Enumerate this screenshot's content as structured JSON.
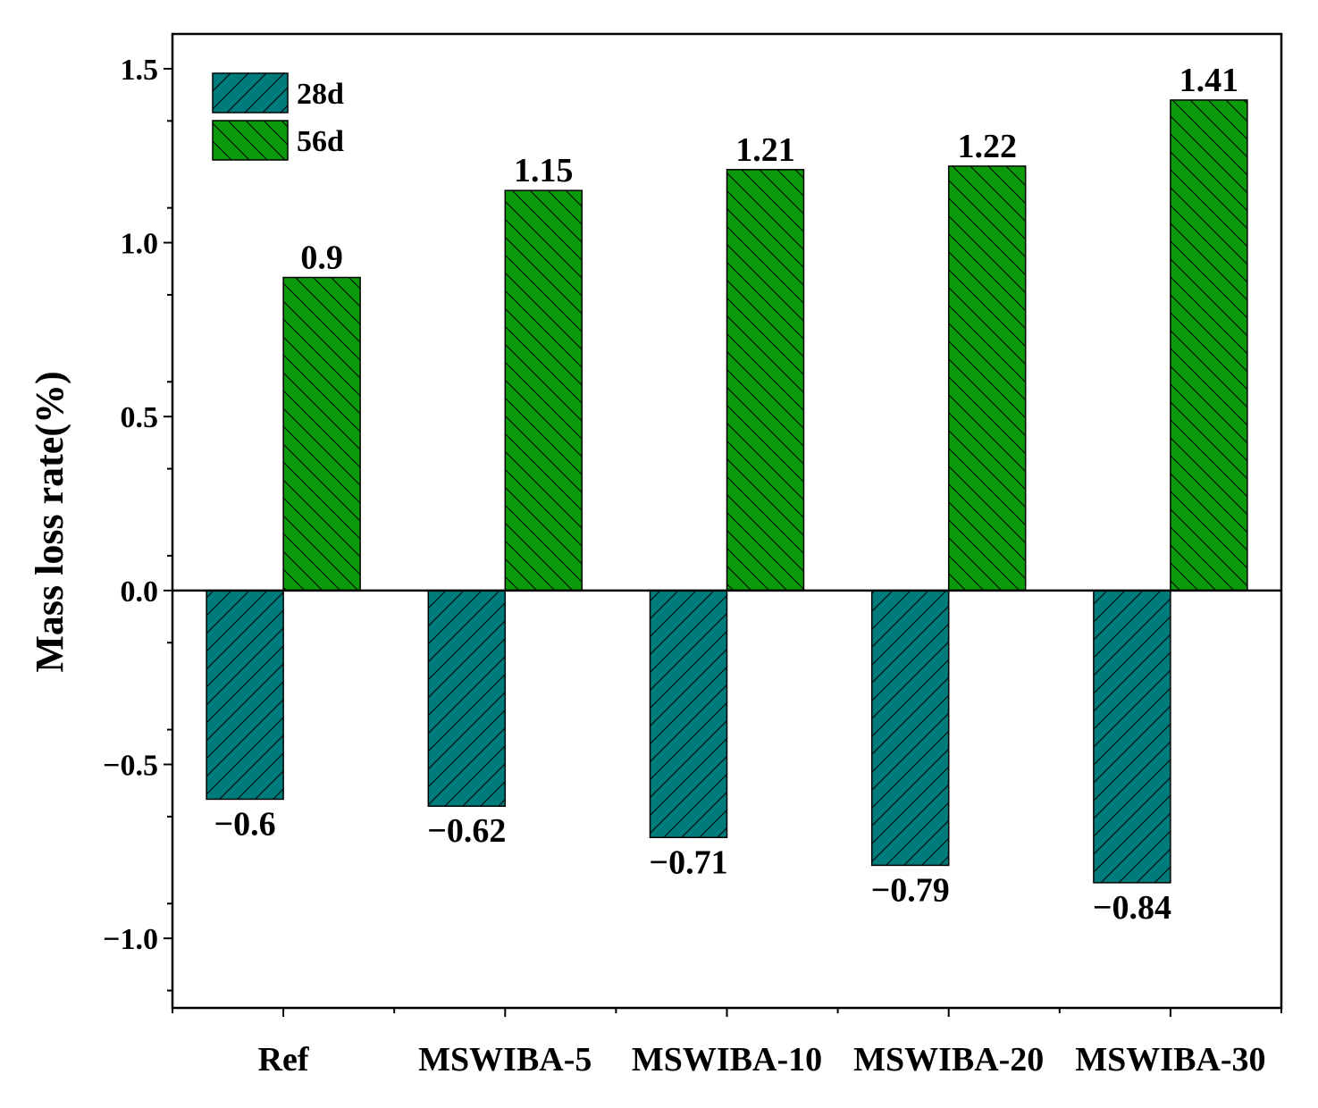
{
  "chart_data": {
    "type": "bar",
    "title": "",
    "xlabel": "",
    "ylabel": "Mass loss rate(%)",
    "categories": [
      "Ref",
      "MSWIBA-5",
      "MSWIBA-10",
      "MSWIBA-20",
      "MSWIBA-30"
    ],
    "series": [
      {
        "name": "28d",
        "color": "#007b7b",
        "hatch": "forward",
        "values": [
          -0.6,
          -0.62,
          -0.71,
          -0.79,
          -0.84
        ],
        "labels": [
          "−0.6",
          "−0.62",
          "−0.71",
          "−0.79",
          "−0.84"
        ]
      },
      {
        "name": "56d",
        "color": "#0a9a0a",
        "hatch": "backward",
        "values": [
          0.9,
          1.15,
          1.21,
          1.22,
          1.41
        ],
        "labels": [
          "0.9",
          "1.15",
          "1.21",
          "1.22",
          "1.41"
        ]
      }
    ],
    "ylim": [
      -1.2,
      1.6
    ],
    "yticks": [
      -1.0,
      -0.5,
      0.0,
      0.5,
      1.0,
      1.5
    ],
    "ytick_labels": [
      "−1.0",
      "−0.5",
      "0.0",
      "0.5",
      "1.0",
      "1.5"
    ],
    "grid": false,
    "legend": "top-left",
    "zero_line": true
  }
}
